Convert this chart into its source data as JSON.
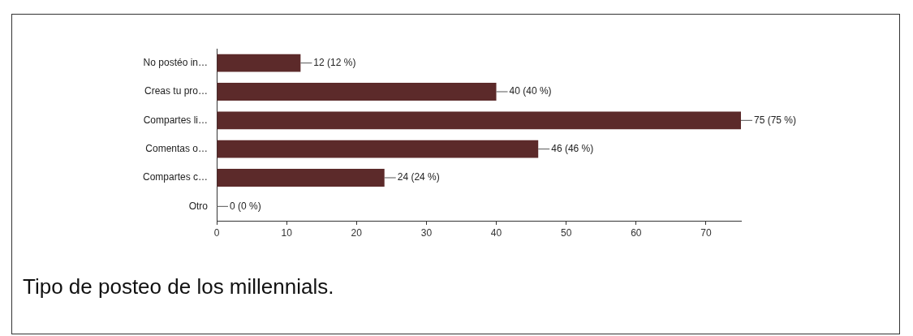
{
  "chart_data": {
    "type": "bar",
    "orientation": "horizontal",
    "categories": [
      "No postéo in…",
      "Creas tu pro…",
      "Compartes li…",
      "Comentas o…",
      "Compartes c…",
      "Otro"
    ],
    "values": [
      12,
      40,
      75,
      46,
      24,
      0
    ],
    "value_labels": [
      "12 (12 %)",
      "40 (40 %)",
      "75 (75 %)",
      "46 (46 %)",
      "24 (24 %)",
      "0 (0 %)"
    ],
    "color": "#5c2a2a",
    "xlim": [
      0,
      75
    ],
    "xticks": [
      0,
      10,
      20,
      30,
      40,
      50,
      60,
      70
    ],
    "grid": false,
    "legend": false,
    "annotations": [
      "Tipo de posteo de los millennials."
    ]
  }
}
